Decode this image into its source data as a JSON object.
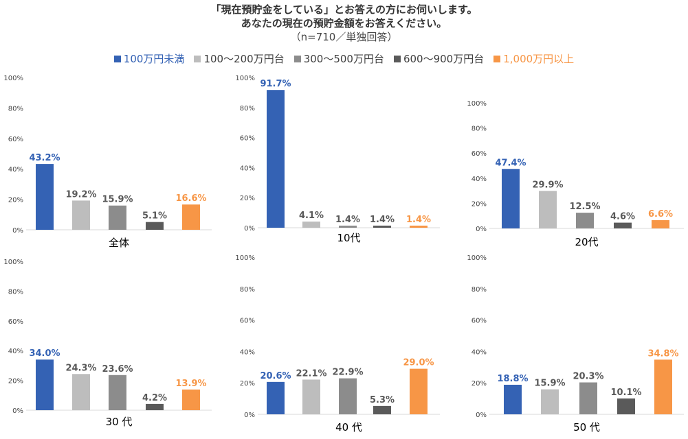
{
  "header": {
    "title_line1": "「現在預貯金をしている」とお答えの方にお伺いします。",
    "title_line2": "あなたの現在の預貯金額をお答えください。",
    "subtitle": "（n=710／単独回答）"
  },
  "legend": [
    {
      "label": "100万円未満",
      "color": "#3462b4",
      "text_color": "#3462b4"
    },
    {
      "label": "100〜200万円台",
      "color": "#bdbdbd",
      "text_color": "#404040"
    },
    {
      "label": "300〜500万円台",
      "color": "#8c8c8c",
      "text_color": "#404040"
    },
    {
      "label": "600〜900万円台",
      "color": "#5a5a5a",
      "text_color": "#404040"
    },
    {
      "label": "1,000万円以上",
      "color": "#f79646",
      "text_color": "#f79646"
    }
  ],
  "chart_data": [
    {
      "type": "bar",
      "label": "全体",
      "categories": [
        "100万円未満",
        "100〜200万円台",
        "300〜500万円台",
        "600〜900万円台",
        "1,000万円以上"
      ],
      "values": [
        43.2,
        19.2,
        15.9,
        5.1,
        16.6
      ],
      "value_labels": [
        "43.2%",
        "19.2%",
        "15.9%",
        "5.1%",
        "16.6%"
      ],
      "ylim": [
        0,
        100
      ],
      "yticks": [
        "0%",
        "20%",
        "40%",
        "60%",
        "80%",
        "100%"
      ]
    },
    {
      "type": "bar",
      "label": "10代",
      "categories": [
        "100万円未満",
        "100〜200万円台",
        "300〜500万円台",
        "600〜900万円台",
        "1,000万円以上"
      ],
      "values": [
        91.7,
        4.1,
        1.4,
        1.4,
        1.4
      ],
      "value_labels": [
        "91.7%",
        "4.1%",
        "1.4%",
        "1.4%",
        "1.4%"
      ],
      "ylim": [
        0,
        100
      ],
      "yticks": [
        "0%",
        "20%",
        "40%",
        "60%",
        "80%",
        "100%"
      ]
    },
    {
      "type": "bar",
      "label": "20代",
      "categories": [
        "100万円未満",
        "100〜200万円台",
        "300〜500万円台",
        "600〜900万円台",
        "1,000万円以上"
      ],
      "values": [
        47.4,
        29.9,
        12.5,
        4.6,
        6.6
      ],
      "value_labels": [
        "47.4%",
        "29.9%",
        "12.5%",
        "4.6%",
        "6.6%"
      ],
      "ylim": [
        0,
        100
      ],
      "yticks": [
        "0%",
        "20%",
        "40%",
        "60%",
        "80%",
        "100%"
      ]
    },
    {
      "type": "bar",
      "label": "30 代",
      "categories": [
        "100万円未満",
        "100〜200万円台",
        "300〜500万円台",
        "600〜900万円台",
        "1,000万円以上"
      ],
      "values": [
        34.0,
        24.3,
        23.6,
        4.2,
        13.9
      ],
      "value_labels": [
        "34.0%",
        "24.3%",
        "23.6%",
        "4.2%",
        "13.9%"
      ],
      "ylim": [
        0,
        100
      ],
      "yticks": [
        "0%",
        "20%",
        "40%",
        "60%",
        "80%",
        "100%"
      ]
    },
    {
      "type": "bar",
      "label": "40 代",
      "categories": [
        "100万円未満",
        "100〜200万円台",
        "300〜500万円台",
        "600〜900万円台",
        "1,000万円以上"
      ],
      "values": [
        20.6,
        22.1,
        22.9,
        5.3,
        29.0
      ],
      "value_labels": [
        "20.6%",
        "22.1%",
        "22.9%",
        "5.3%",
        "29.0%"
      ],
      "ylim": [
        0,
        100
      ],
      "yticks": [
        "0%",
        "20%",
        "40%",
        "60%",
        "80%",
        "100%"
      ]
    },
    {
      "type": "bar",
      "label": "50 代",
      "categories": [
        "100万円未満",
        "100〜200万円台",
        "300〜500万円台",
        "600〜900万円台",
        "1,000万円以上"
      ],
      "values": [
        18.8,
        15.9,
        20.3,
        10.1,
        34.8
      ],
      "value_labels": [
        "18.8%",
        "15.9%",
        "20.3%",
        "10.1%",
        "34.8%"
      ],
      "ylim": [
        0,
        100
      ],
      "yticks": [
        "0%",
        "20%",
        "40%",
        "60%",
        "80%",
        "100%"
      ]
    }
  ]
}
